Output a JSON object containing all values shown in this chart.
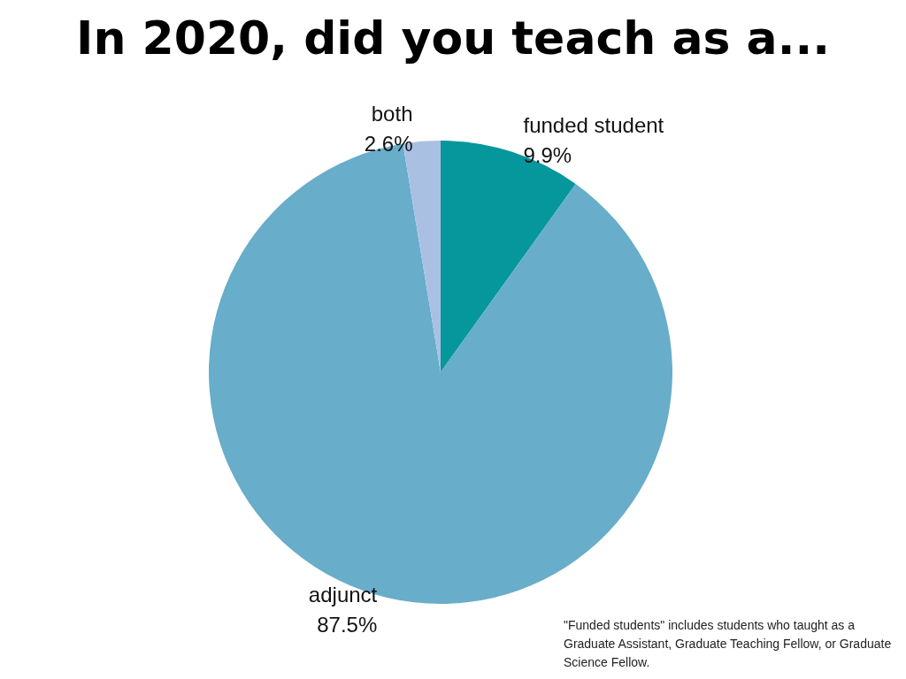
{
  "chart_data": {
    "type": "pie",
    "title": "In 2020, did you teach as a...",
    "categories": [
      "funded student",
      "adjunct",
      "both"
    ],
    "values": [
      9.9,
      87.5,
      2.6
    ],
    "value_labels": [
      "9.9%",
      "87.5%",
      "2.6%"
    ],
    "colors": [
      "#05979c",
      "#68adca",
      "#aac0e2"
    ],
    "legend": false,
    "annotations": [
      "\"Funded students\" includes students who taught as a Graduate Assistant, Graduate Teaching Fellow, or Graduate Science Fellow."
    ]
  }
}
